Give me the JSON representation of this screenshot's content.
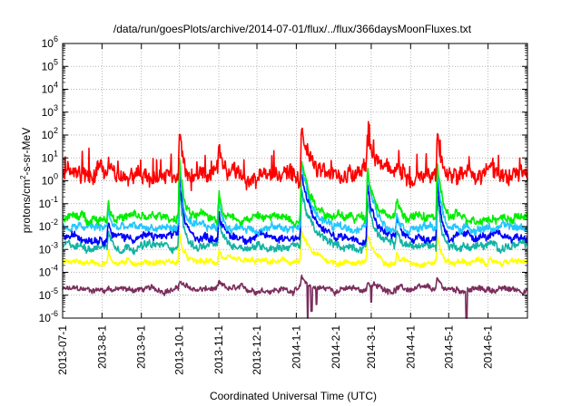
{
  "chart_data": {
    "type": "line",
    "title": "/data/run/goesPlots/archive/2014-07-01/flux/../flux/366daysMoonFluxes.txt",
    "xlabel": "Coordinated Universal Time (UTC)",
    "ylabel": "protons/cm2-s-sr-MeV",
    "yscale": "log",
    "ylim": [
      1e-06,
      1000000.0
    ],
    "y_ticks": [
      {
        "exp": "-6"
      },
      {
        "exp": "-5"
      },
      {
        "exp": "-4"
      },
      {
        "exp": "-3"
      },
      {
        "exp": "-2"
      },
      {
        "exp": "-1"
      },
      {
        "exp": "0"
      },
      {
        "exp": "1"
      },
      {
        "exp": "2"
      },
      {
        "exp": "3"
      },
      {
        "exp": "4"
      },
      {
        "exp": "5"
      },
      {
        "exp": "6"
      }
    ],
    "x_ticks": [
      "2013-07-1",
      "2013-8-1",
      "2013-9-1",
      "2013-10-1",
      "2013-11-1",
      "2013-12-1",
      "2014-1-1",
      "2014-2-1",
      "2014-3-1",
      "2014-4-1",
      "2014-5-1",
      "2014-6-1"
    ],
    "xlim_days": [
      0,
      366
    ],
    "tick_days": [
      0,
      31,
      62,
      92,
      123,
      153,
      184,
      215,
      243,
      274,
      304,
      335
    ],
    "grid": true,
    "series": [
      {
        "color": "#7a2d5c",
        "base_log": -4.75,
        "noise": 0.18,
        "spike_scale": 0.15
      },
      {
        "color": "#ffff00",
        "base_log": -3.55,
        "noise": 0.18,
        "spike_scale": 0.45
      },
      {
        "color": "#13b3a3",
        "base_log": -2.85,
        "noise": 0.25,
        "spike_scale": 0.9
      },
      {
        "color": "#0000ff",
        "base_log": -2.45,
        "noise": 0.25,
        "spike_scale": 1.0
      },
      {
        "color": "#22c7ff",
        "base_log": -2.05,
        "noise": 0.25,
        "spike_scale": 1.0
      },
      {
        "color": "#00ee00",
        "base_log": -1.6,
        "noise": 0.28,
        "spike_scale": 0.95
      },
      {
        "color": "#ff0000",
        "base_log": 0.25,
        "noise": 0.55,
        "spike_scale": 0.7
      }
    ],
    "events": [
      {
        "day": 36,
        "height": 0.9,
        "width": 2
      },
      {
        "day": 92,
        "height": 3.0,
        "width": 3
      },
      {
        "day": 123,
        "height": 1.3,
        "width": 3
      },
      {
        "day": 188,
        "height": 2.8,
        "width": 8
      },
      {
        "day": 240,
        "height": 2.4,
        "width": 6
      },
      {
        "day": 263,
        "height": 0.8,
        "width": 3
      },
      {
        "day": 295,
        "height": 2.7,
        "width": 3
      }
    ],
    "dips": [
      {
        "day": 193,
        "series": 0,
        "to_log": -6
      },
      {
        "day": 196,
        "series": 0,
        "to_log": -5.7
      },
      {
        "day": 200,
        "series": 0,
        "to_log": -5.4
      },
      {
        "day": 243,
        "series": 0,
        "to_log": -5.3
      },
      {
        "day": 318,
        "series": 0,
        "to_log": -6
      }
    ]
  }
}
